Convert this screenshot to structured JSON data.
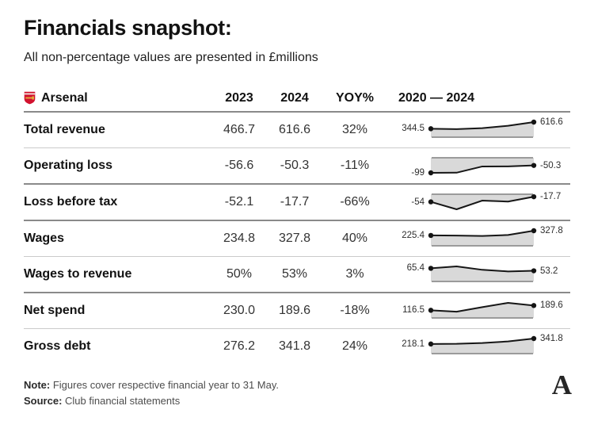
{
  "title": "Financials snapshot:",
  "subtitle": "All non-percentage values are presented in £millions",
  "header": {
    "club": "Arsenal",
    "crest_icon": "arsenal-crest-icon",
    "col_2023": "2023",
    "col_2024": "2024",
    "col_yoy": "YOY%",
    "col_range": "2020 — 2024"
  },
  "rows": [
    {
      "label": "Total revenue",
      "v2023": "466.7",
      "v2024": "616.6",
      "yoy": "32%",
      "sep_after": "light",
      "spark": {
        "values": [
          344.5,
          330,
          368,
          466.7,
          616.6
        ],
        "start_label": "344.5",
        "end_label": "616.6"
      }
    },
    {
      "label": "Operating loss",
      "v2023": "-56.6",
      "v2024": "-50.3",
      "yoy": "-11%",
      "sep_after": "dark",
      "spark": {
        "values": [
          -99,
          -98,
          -57,
          -56.6,
          -50.3
        ],
        "start_label": "-99",
        "end_label": "-50.3"
      }
    },
    {
      "label": "Loss before tax",
      "v2023": "-52.1",
      "v2024": "-17.7",
      "yoy": "-66%",
      "sep_after": "dark",
      "spark": {
        "values": [
          -54,
          -107,
          -45,
          -52.1,
          -17.7
        ],
        "start_label": "-54",
        "end_label": "-17.7"
      }
    },
    {
      "label": "Wages",
      "v2023": "234.8",
      "v2024": "327.8",
      "yoy": "40%",
      "sep_after": "light",
      "spark": {
        "values": [
          225.4,
          222,
          214,
          234.8,
          327.8
        ],
        "start_label": "225.4",
        "end_label": "327.8"
      }
    },
    {
      "label": "Wages to revenue",
      "v2023": "50%",
      "v2024": "53%",
      "yoy": "3%",
      "sep_after": "dark",
      "spark": {
        "values": [
          65.4,
          75,
          58,
          50,
          53.2
        ],
        "start_label": "65.4",
        "end_label": "53.2"
      }
    },
    {
      "label": "Net spend",
      "v2023": "230.0",
      "v2024": "189.6",
      "yoy": "-18%",
      "sep_after": "light",
      "spark": {
        "values": [
          116.5,
          95,
          165,
          230,
          189.6
        ],
        "start_label": "116.5",
        "end_label": "189.6"
      }
    },
    {
      "label": "Gross debt",
      "v2023": "276.2",
      "v2024": "341.8",
      "yoy": "24%",
      "sep_after": "none",
      "spark": {
        "values": [
          218.1,
          222,
          240,
          276.2,
          341.8
        ],
        "start_label": "218.1",
        "end_label": "341.8"
      }
    }
  ],
  "footer": {
    "note_label": "Note:",
    "note_text": " Figures cover respective financial year to 31 May.",
    "source_label": "Source:",
    "source_text": " Club financial statements"
  },
  "logo_glyph": "A",
  "colors": {
    "spark_fill": "#d9d9d9",
    "spark_line": "#161616",
    "spark_dot": "#141414",
    "spark_baseline": "#9b9b9b",
    "separator_dark": "#8a8a8a",
    "separator_light": "#cbcbcb",
    "crest_red": "#d2122e",
    "crest_gold": "#e2b33c"
  },
  "chart_data": {
    "type": "table",
    "title": "Financials snapshot:",
    "subtitle": "All non-percentage values are presented in £millions",
    "columns": [
      "Arsenal",
      "2023",
      "2024",
      "YOY%",
      "2020 — 2024"
    ],
    "rows": [
      {
        "metric": "Total revenue",
        "y2023": 466.7,
        "y2024": 616.6,
        "yoy_pct": 32
      },
      {
        "metric": "Operating loss",
        "y2023": -56.6,
        "y2024": -50.3,
        "yoy_pct": -11
      },
      {
        "metric": "Loss before tax",
        "y2023": -52.1,
        "y2024": -17.7,
        "yoy_pct": -66
      },
      {
        "metric": "Wages",
        "y2023": 234.8,
        "y2024": 327.8,
        "yoy_pct": 40
      },
      {
        "metric": "Wages to revenue",
        "y2023_pct": 50,
        "y2024_pct": 53,
        "yoy_pct": 3
      },
      {
        "metric": "Net spend",
        "y2023": 230.0,
        "y2024": 189.6,
        "yoy_pct": -18
      },
      {
        "metric": "Gross debt",
        "y2023": 276.2,
        "y2024": 341.8,
        "yoy_pct": 24
      }
    ],
    "sparklines": [
      {
        "name": "Total revenue",
        "type": "line",
        "x": [
          2020,
          2021,
          2022,
          2023,
          2024
        ],
        "values": [
          344.5,
          330,
          368,
          466.7,
          616.6
        ],
        "labeled_points": {
          "2020": 344.5,
          "2024": 616.6
        }
      },
      {
        "name": "Operating loss",
        "type": "line",
        "x": [
          2020,
          2021,
          2022,
          2023,
          2024
        ],
        "values": [
          -99,
          -98,
          -57,
          -56.6,
          -50.3
        ],
        "labeled_points": {
          "2020": -99,
          "2024": -50.3
        }
      },
      {
        "name": "Loss before tax",
        "type": "line",
        "x": [
          2020,
          2021,
          2022,
          2023,
          2024
        ],
        "values": [
          -54,
          -107,
          -45,
          -52.1,
          -17.7
        ],
        "labeled_points": {
          "2020": -54,
          "2024": -17.7
        }
      },
      {
        "name": "Wages",
        "type": "line",
        "x": [
          2020,
          2021,
          2022,
          2023,
          2024
        ],
        "values": [
          225.4,
          222,
          214,
          234.8,
          327.8
        ],
        "labeled_points": {
          "2020": 225.4,
          "2024": 327.8
        }
      },
      {
        "name": "Wages to revenue",
        "type": "line",
        "x": [
          2020,
          2021,
          2022,
          2023,
          2024
        ],
        "values": [
          65.4,
          75,
          58,
          50,
          53.2
        ],
        "labeled_points": {
          "2020": 65.4,
          "2024": 53.2
        }
      },
      {
        "name": "Net spend",
        "type": "line",
        "x": [
          2020,
          2021,
          2022,
          2023,
          2024
        ],
        "values": [
          116.5,
          95,
          165,
          230,
          189.6
        ],
        "labeled_points": {
          "2020": 116.5,
          "2024": 189.6
        }
      },
      {
        "name": "Gross debt",
        "type": "line",
        "x": [
          2020,
          2021,
          2022,
          2023,
          2024
        ],
        "values": [
          218.1,
          222,
          240,
          276.2,
          341.8
        ],
        "labeled_points": {
          "2020": 218.1,
          "2024": 341.8
        }
      }
    ],
    "layout": {
      "baseline": "zero",
      "fill_between_line_and_zero": true,
      "legend": "none"
    },
    "note": "Figures cover respective financial year to 31 May.",
    "source": "Club financial statements"
  }
}
